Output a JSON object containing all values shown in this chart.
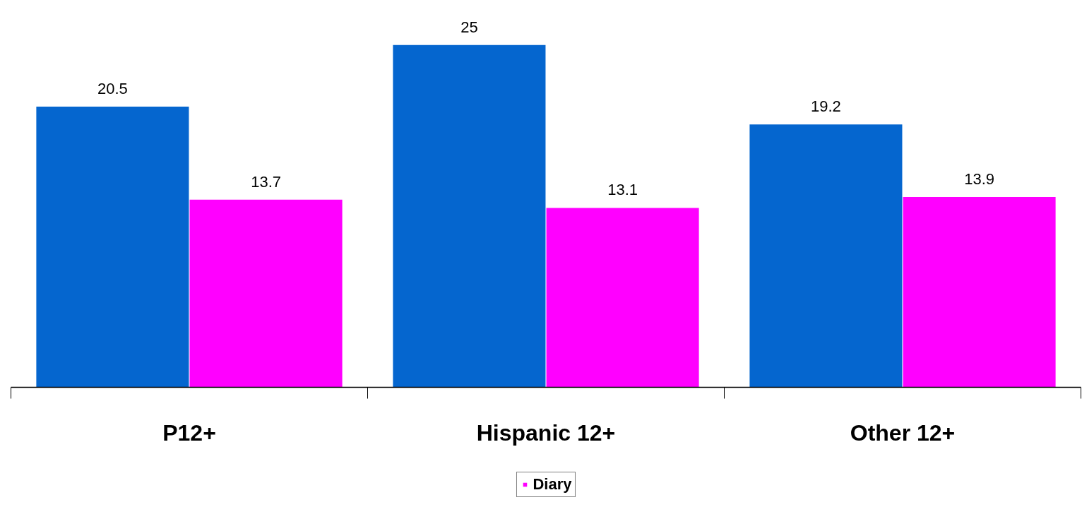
{
  "chart_data": {
    "type": "bar",
    "categories": [
      "P12+",
      "Hispanic 12+",
      "Other 12+"
    ],
    "series": [
      {
        "color": "#0566cf",
        "values": [
          20.5,
          25,
          19.2
        ]
      },
      {
        "name": "Diary",
        "color": "#ff00ff",
        "values": [
          13.7,
          13.1,
          13.9
        ]
      }
    ],
    "data_labels": true,
    "grid": false,
    "legend": "bottom"
  }
}
